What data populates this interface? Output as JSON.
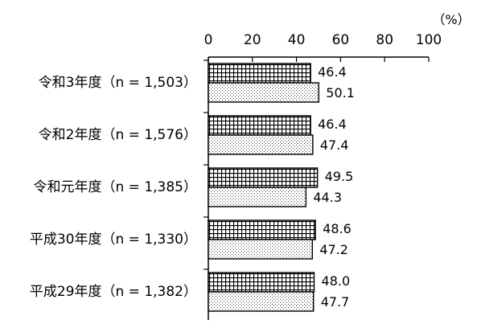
{
  "chart_data": {
    "type": "bar",
    "orientation": "horizontal",
    "unit_label": "（%）",
    "xlim": [
      0,
      100
    ],
    "x_ticks": [
      "0",
      "20",
      "40",
      "60",
      "80",
      "100"
    ],
    "categories": [
      "令和3年度（n = 1,503）",
      "令和2年度（n = 1,576）",
      "令和元年度（n = 1,385）",
      "平成30年度（n = 1,330）",
      "平成29年度（n = 1,382）"
    ],
    "series": [
      {
        "pattern": "grid-hatch",
        "values": [
          46.4,
          46.4,
          49.5,
          48.6,
          48.0
        ]
      },
      {
        "pattern": "dot-pattern",
        "values": [
          50.1,
          47.4,
          44.3,
          47.2,
          47.7
        ]
      }
    ],
    "value_labels": [
      [
        "46.4",
        "46.4",
        "49.5",
        "48.6",
        "48.0"
      ],
      [
        "50.1",
        "47.4",
        "44.3",
        "47.2",
        "47.7"
      ]
    ],
    "legend": "none",
    "grid": false
  }
}
